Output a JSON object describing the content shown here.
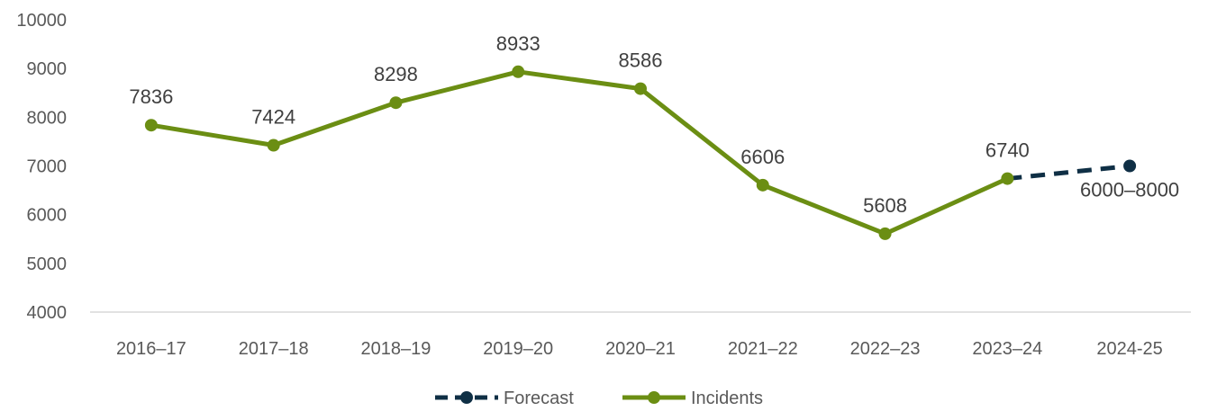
{
  "chart_data": {
    "type": "line",
    "title": "",
    "xlabel": "",
    "ylabel": "",
    "categories": [
      "2016–17",
      "2017–18",
      "2018–19",
      "2019–20",
      "2020–21",
      "2021–22",
      "2022–23",
      "2023–24",
      "2024-25"
    ],
    "ylim": [
      4000,
      10000
    ],
    "yticks": [
      4000,
      5000,
      6000,
      7000,
      8000,
      9000,
      10000
    ],
    "grid": false,
    "legend_position": "bottom",
    "series": [
      {
        "name": "Incidents",
        "color": "#6b8e13",
        "line_style": "solid",
        "values": [
          7836,
          7424,
          8298,
          8933,
          8586,
          6606,
          5608,
          6740,
          null
        ],
        "labels": [
          "7836",
          "7424",
          "8298",
          "8933",
          "8586",
          "6606",
          "5608",
          "6740",
          null
        ]
      },
      {
        "name": "Forecast",
        "color": "#0f2f45",
        "line_style": "dashed",
        "values": [
          null,
          null,
          null,
          null,
          null,
          null,
          null,
          6740,
          7000
        ],
        "labels": [
          null,
          null,
          null,
          null,
          null,
          null,
          null,
          null,
          "6000–8000"
        ]
      }
    ],
    "legend_order": [
      "Forecast",
      "Incidents"
    ]
  }
}
